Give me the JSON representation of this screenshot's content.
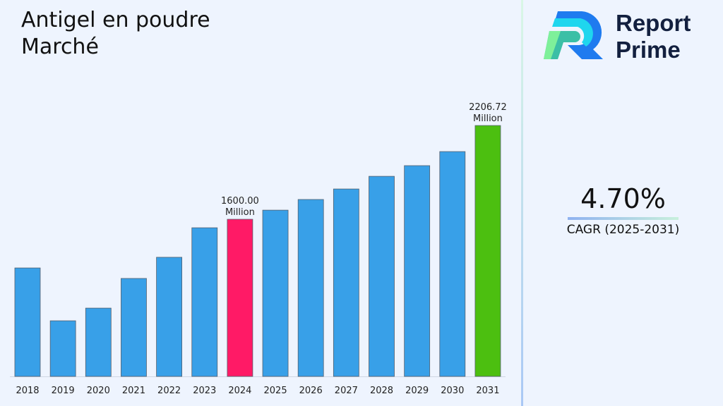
{
  "title_lines": [
    "Antigel en poudre",
    "Marché"
  ],
  "logo": {
    "text_lines": [
      "Report",
      "Prime"
    ]
  },
  "cagr": {
    "value": "4.70%",
    "label": "CAGR (2025-2031)"
  },
  "colors": {
    "bar": "#38a0e8",
    "highlight_2024": "#ff1a66",
    "highlight_2031": "#4cbf10",
    "background": "#eef4fe"
  },
  "chart_data": {
    "type": "bar",
    "title": "Antigel en poudre Marché",
    "categories": [
      "2018",
      "2019",
      "2020",
      "2021",
      "2022",
      "2023",
      "2024",
      "2025",
      "2026",
      "2027",
      "2028",
      "2029",
      "2030",
      "2031"
    ],
    "values": [
      1285,
      943,
      1025,
      1217,
      1354,
      1545,
      1600,
      1659,
      1728,
      1796,
      1878,
      1947,
      2038,
      2206.72
    ],
    "unit": "Million",
    "data_labels": {
      "2024": "1600.00 Million",
      "2031": "2206.72 Million"
    },
    "ylim": [
      583,
      2426
    ],
    "grid": false,
    "y_axis_visible": false
  }
}
